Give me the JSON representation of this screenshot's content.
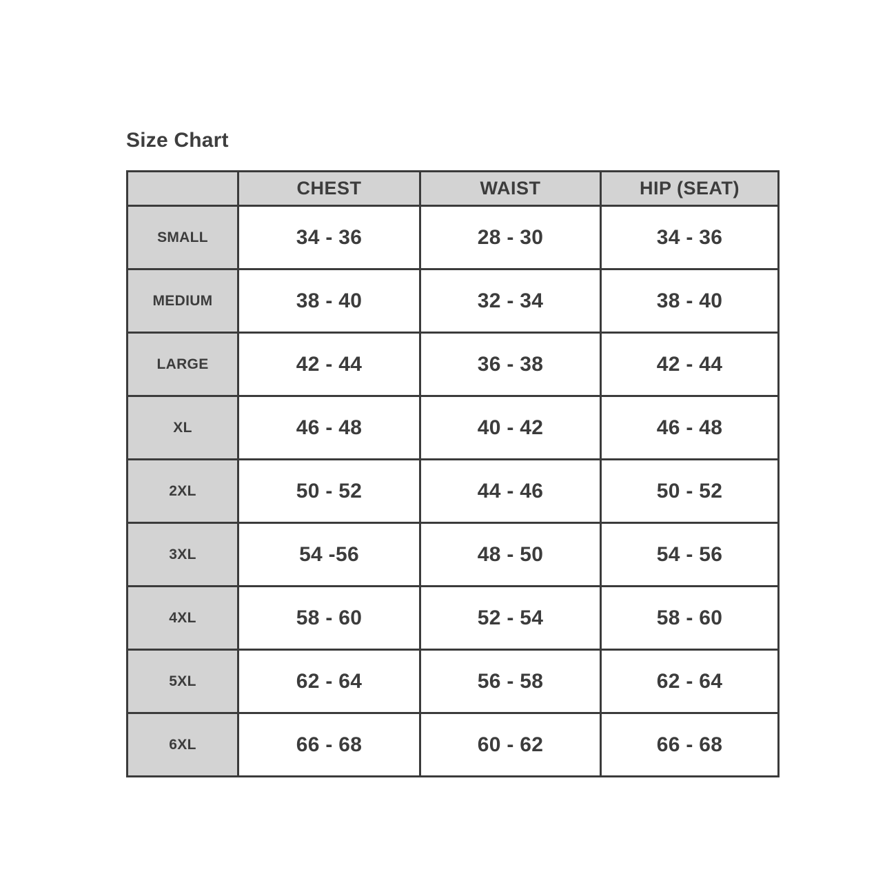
{
  "page_title": "Size Chart",
  "colors": {
    "header_bg": "#d3d3d3",
    "border": "#3b3b3b",
    "text": "#3c3c3c",
    "background": "#ffffff"
  },
  "chart_data": {
    "type": "table",
    "title": "Size Chart",
    "columns": [
      "",
      "CHEST",
      "WAIST",
      "HIP (SEAT)"
    ],
    "rows": [
      [
        "SMALL",
        "34 - 36",
        "28 - 30",
        "34 - 36"
      ],
      [
        "MEDIUM",
        "38 - 40",
        "32 - 34",
        "38 - 40"
      ],
      [
        "LARGE",
        "42 - 44",
        "36 - 38",
        "42 - 44"
      ],
      [
        "XL",
        "46 - 48",
        "40 - 42",
        "46 - 48"
      ],
      [
        "2XL",
        "50 - 52",
        "44 - 46",
        "50 - 52"
      ],
      [
        "3XL",
        "54 -56",
        "48 - 50",
        "54 - 56"
      ],
      [
        "4XL",
        "58 - 60",
        "52 - 54",
        "58 - 60"
      ],
      [
        "5XL",
        "62 - 64",
        "56 - 58",
        "62 - 64"
      ],
      [
        "6XL",
        "66 - 68",
        "60 - 62",
        "66 - 68"
      ]
    ]
  }
}
